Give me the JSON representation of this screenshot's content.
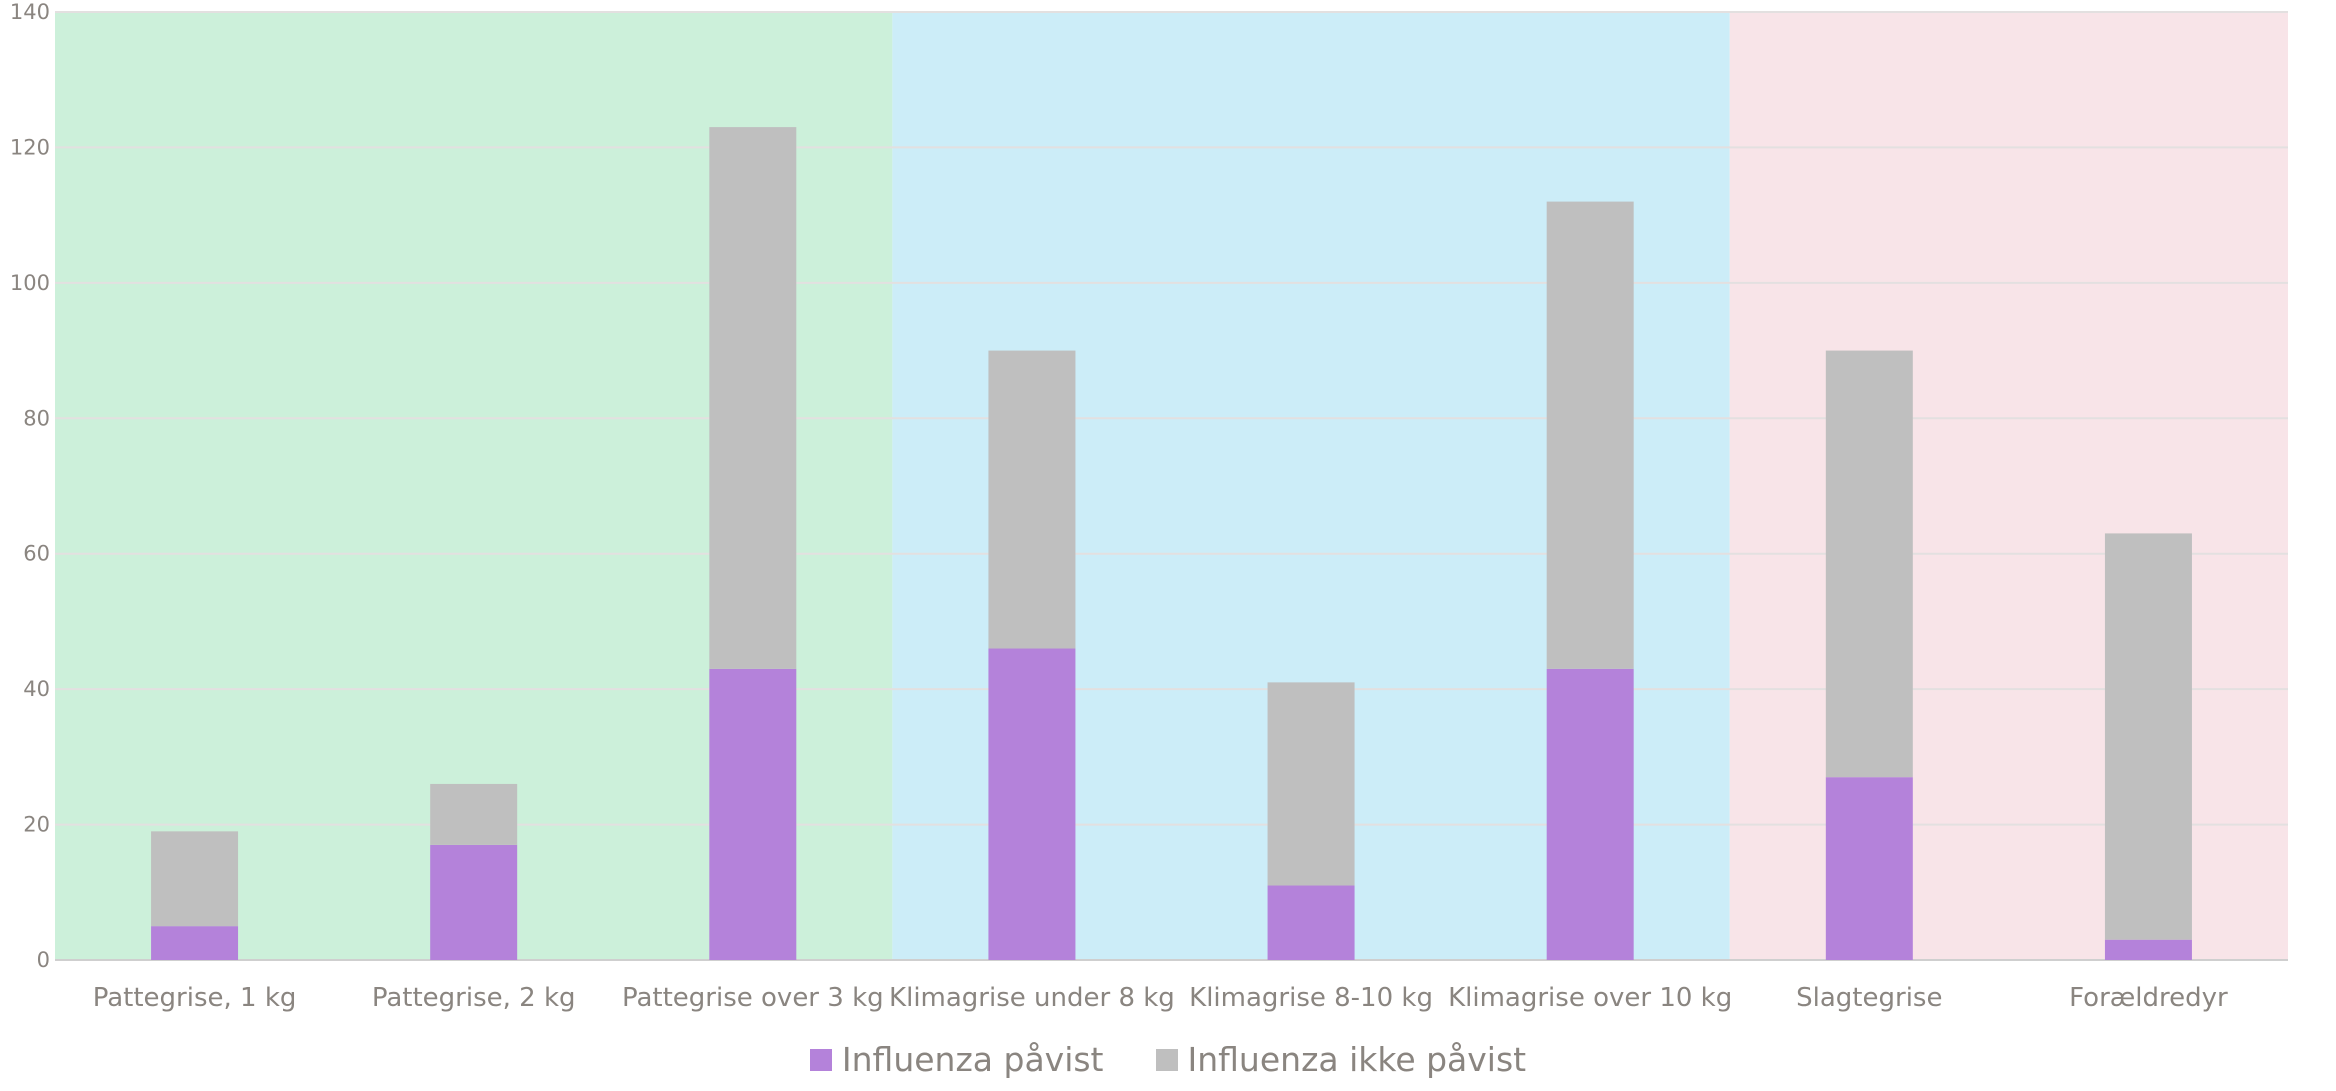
{
  "chart_data": {
    "type": "bar",
    "stacked": true,
    "categories": [
      "Pattegrise, 1 kg",
      "Pattegrise, 2 kg",
      "Pattegrise over 3 kg",
      "Klimagrise under 8 kg",
      "Klimagrise 8-10 kg",
      "Klimagrise over 10 kg",
      "Slagtegrise",
      "Forældredyr"
    ],
    "series": [
      {
        "name": "Influenza påvist",
        "color": "#b482da",
        "values": [
          5,
          17,
          43,
          46,
          11,
          43,
          27,
          3
        ]
      },
      {
        "name": "Influenza ikke påvist",
        "color": "#bfbfbf",
        "values": [
          14,
          9,
          80,
          44,
          30,
          69,
          63,
          60
        ]
      }
    ],
    "ylim": [
      0,
      140
    ],
    "yticks": [
      "0",
      "20",
      "40",
      "60",
      "80",
      "100",
      "120",
      "140"
    ],
    "grid": true,
    "legend_position": "bottom-center",
    "background_bands": [
      {
        "from_category": 0,
        "to_category": 2,
        "color": "#ccf0da"
      },
      {
        "from_category": 3,
        "to_category": 5,
        "color": "#ccedf8"
      },
      {
        "from_category": 6,
        "to_category": 7,
        "color": "#f8e4e8"
      }
    ]
  }
}
